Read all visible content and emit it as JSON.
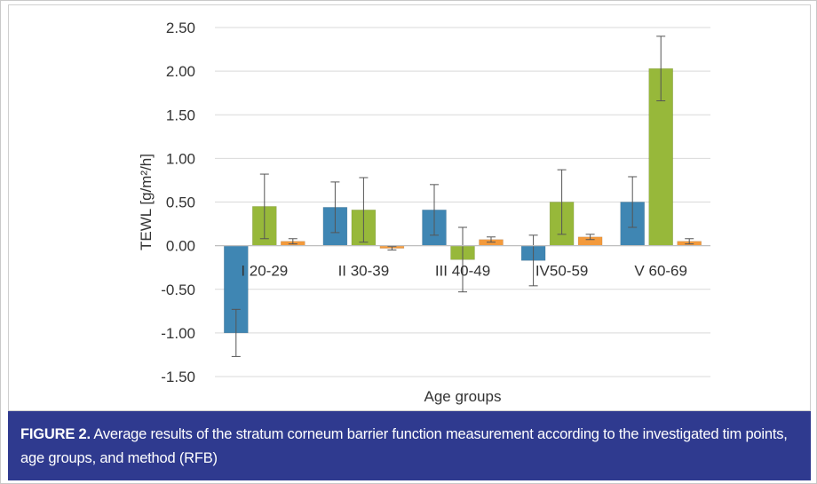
{
  "caption": {
    "label": "FIGURE 2.",
    "text": "Average results of the stratum corneum barrier function measurement according to the investigated  tim points, age groups, and method (RFB)"
  },
  "chart_data": {
    "type": "bar",
    "xlabel": "Age groups",
    "ylabel": "TEWL [g/m²/h]",
    "ylim": [
      -1.5,
      2.5
    ],
    "yticks": [
      2.5,
      2.0,
      1.5,
      1.0,
      0.5,
      0.0,
      -0.5,
      -1.0,
      -1.5
    ],
    "ytick_labels": [
      "2.50",
      "2.00",
      "1.50",
      "1.00",
      "0.50",
      "0.00",
      "-0.50",
      "-1.00",
      "-1.50"
    ],
    "grid": true,
    "categories": [
      "I 20-29",
      "II 30-39",
      "III 40-49",
      "IV50-59",
      "V 60-69"
    ],
    "series": [
      {
        "color": "#3f86b3",
        "values": [
          -1.0,
          0.44,
          0.41,
          -0.17,
          0.5
        ],
        "errors": [
          0.27,
          0.29,
          0.29,
          0.29,
          0.29
        ]
      },
      {
        "color": "#97b83a",
        "values": [
          0.45,
          0.41,
          -0.16,
          0.5,
          2.03
        ],
        "errors": [
          0.37,
          0.37,
          0.37,
          0.37,
          0.37
        ]
      },
      {
        "color": "#f39a3c",
        "values": [
          0.05,
          -0.03,
          0.07,
          0.1,
          0.05
        ],
        "errors": [
          0.03,
          0.02,
          0.03,
          0.03,
          0.03
        ]
      }
    ]
  }
}
